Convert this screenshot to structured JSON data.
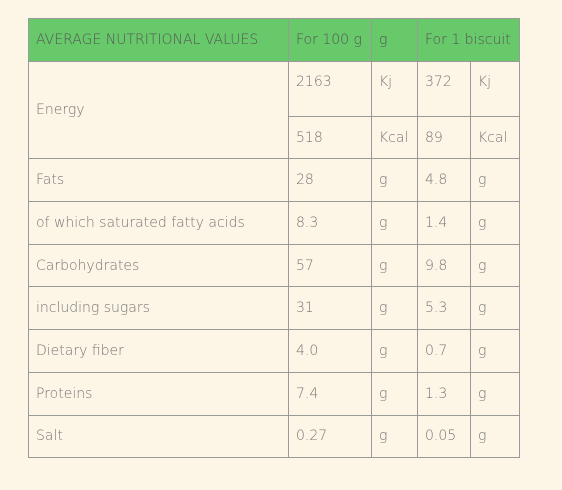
{
  "table": {
    "header": [
      "AVERAGE NUTRITIONAL VALUES",
      "For 100 g",
      "g",
      "For 1 biscuit"
    ],
    "energy": {
      "label": "Energy",
      "rows": [
        [
          "2163",
          "Kj",
          "372",
          "Kj"
        ],
        [
          "518",
          "Kcal",
          "89",
          "Kcal"
        ]
      ]
    },
    "rows": [
      [
        "Fats",
        "28",
        "g",
        "4.8",
        "g"
      ],
      [
        "of which saturated fatty acids",
        "8.3",
        "g",
        "1.4",
        "g"
      ],
      [
        "Carbohydrates",
        "57",
        "g",
        "9.8",
        "g"
      ],
      [
        "including sugars",
        "31",
        "g",
        "5.3",
        "g"
      ],
      [
        "Dietary fiber",
        "4.0",
        "g",
        "0.7",
        "g"
      ],
      [
        "Proteins",
        "7.4",
        "g",
        "1.3",
        "g"
      ],
      [
        "Salt",
        "0.27",
        "g",
        "0.05",
        "g"
      ]
    ]
  }
}
